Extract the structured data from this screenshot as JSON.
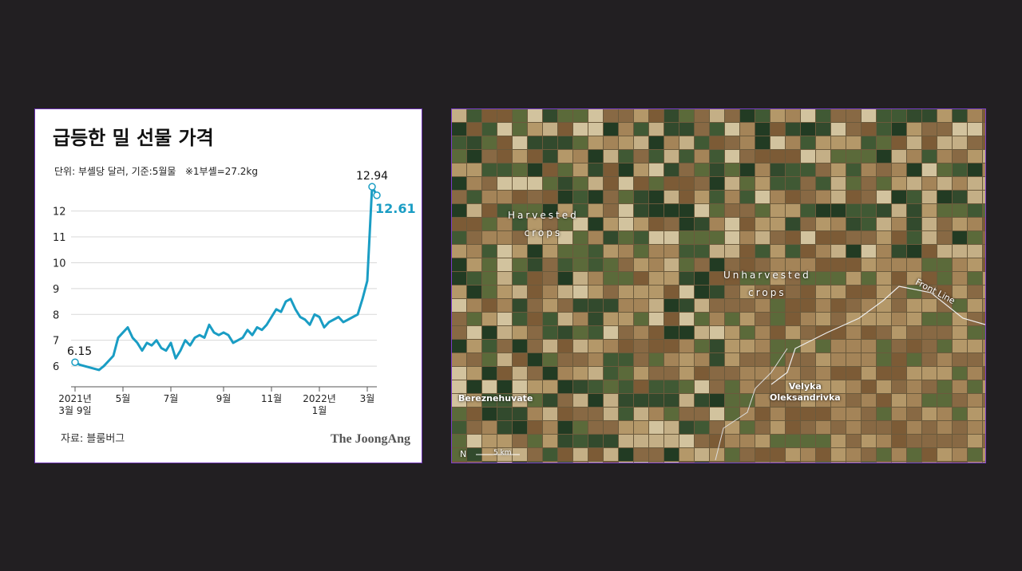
{
  "chart_data": {
    "type": "line",
    "title": "급등한 밀 선물 가격",
    "subtitle": "단위: 부셸당 달러, 기준:5월물   ※1부셸=27.2kg",
    "source": "자료: 블룸버그",
    "brand": "The JoongAng",
    "categories": [
      "2021년\n3월 9일",
      null,
      null,
      null,
      null,
      null,
      null,
      null,
      null,
      null,
      "5월",
      null,
      null,
      null,
      null,
      null,
      null,
      null,
      null,
      null,
      "7월",
      null,
      null,
      null,
      null,
      null,
      null,
      null,
      null,
      null,
      null,
      "9월",
      null,
      null,
      null,
      null,
      null,
      null,
      null,
      null,
      null,
      "11월",
      null,
      null,
      null,
      null,
      null,
      null,
      null,
      null,
      null,
      "2022년\n1월",
      null,
      null,
      null,
      null,
      null,
      null,
      null,
      null,
      null,
      "3월",
      null,
      null
    ],
    "values": [
      6.15,
      6.05,
      6.0,
      5.95,
      5.9,
      5.85,
      6.0,
      6.2,
      6.4,
      7.1,
      7.3,
      7.5,
      7.1,
      6.9,
      6.6,
      6.9,
      6.8,
      7.0,
      6.7,
      6.6,
      6.9,
      6.3,
      6.6,
      7.0,
      6.8,
      7.1,
      7.2,
      7.1,
      7.6,
      7.3,
      7.2,
      7.3,
      7.2,
      6.9,
      7.0,
      7.1,
      7.4,
      7.2,
      7.5,
      7.4,
      7.6,
      7.9,
      8.2,
      8.1,
      8.5,
      8.6,
      8.2,
      7.9,
      7.8,
      7.6,
      8.0,
      7.9,
      7.5,
      7.7,
      7.8,
      7.9,
      7.7,
      7.8,
      7.9,
      8.0,
      8.6,
      9.3,
      12.94,
      12.61
    ],
    "color": "#1a9dc4",
    "labeled_points": [
      0,
      62,
      63
    ],
    "ylim": [
      5.2,
      13.1
    ],
    "yticks": [
      6,
      7,
      8,
      9,
      10,
      11,
      12
    ],
    "grid": true
  },
  "image_labels": {
    "harvested": "Harvested\ncrops",
    "unharvested": "Unharvested\ncrops",
    "front_line": "Front Line",
    "town_1": "Bereznehuvate",
    "town_2": "Velyka\nOleksandrivka",
    "north": "N",
    "scale": "5 km"
  }
}
